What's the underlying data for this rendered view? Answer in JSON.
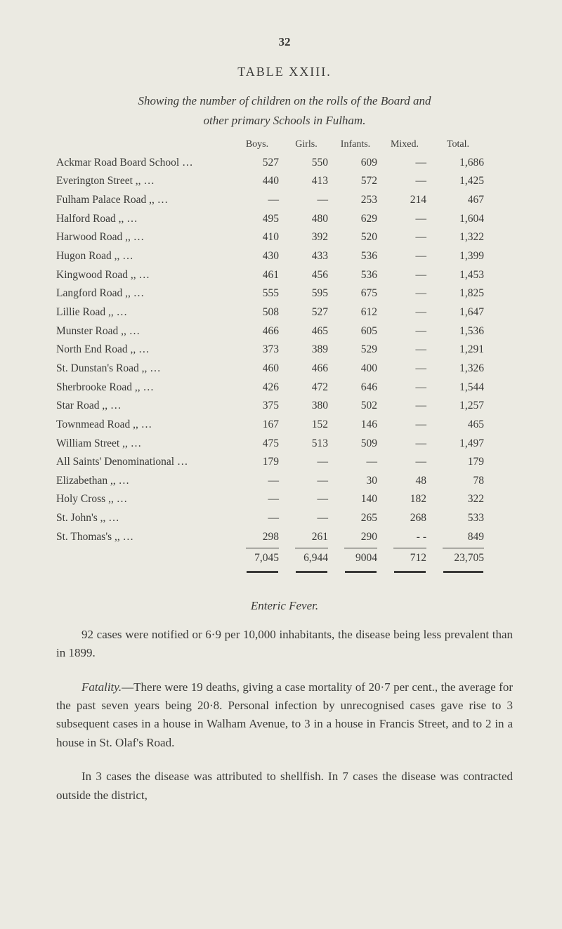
{
  "page_number": "32",
  "table": {
    "title": "TABLE XXIII.",
    "subtitle_line1": "Showing the number of children on the rolls of the Board and",
    "subtitle_line2": "other primary Schools in Fulham.",
    "columns": {
      "c1": "Boys.",
      "c2": "Girls.",
      "c3": "Infants.",
      "c4": "Mixed.",
      "c5": "Total."
    },
    "rows": [
      {
        "label": "Ackmar Road Board School …",
        "boys": "527",
        "girls": "550",
        "infants": "609",
        "mixed": "—",
        "total": "1,686"
      },
      {
        "label": "Everington Street        ,,          …",
        "boys": "440",
        "girls": "413",
        "infants": "572",
        "mixed": "—",
        "total": "1,425"
      },
      {
        "label": "Fulham Palace Road ,,          …",
        "boys": "—",
        "girls": "—",
        "infants": "253",
        "mixed": "214",
        "total": "467"
      },
      {
        "label": "Halford Road               ,,          …",
        "boys": "495",
        "girls": "480",
        "infants": "629",
        "mixed": "—",
        "total": "1,604"
      },
      {
        "label": "Harwood Road             ,,          …",
        "boys": "410",
        "girls": "392",
        "infants": "520",
        "mixed": "—",
        "total": "1,322"
      },
      {
        "label": "Hugon Road                 ,,          …",
        "boys": "430",
        "girls": "433",
        "infants": "536",
        "mixed": "—",
        "total": "1,399"
      },
      {
        "label": "Kingwood Road           ,,          …",
        "boys": "461",
        "girls": "456",
        "infants": "536",
        "mixed": "—",
        "total": "1,453"
      },
      {
        "label": "Langford Road             ,,          …",
        "boys": "555",
        "girls": "595",
        "infants": "675",
        "mixed": "—",
        "total": "1,825"
      },
      {
        "label": "Lillie Road                    ,,          …",
        "boys": "508",
        "girls": "527",
        "infants": "612",
        "mixed": "—",
        "total": "1,647"
      },
      {
        "label": "Munster Road              ,,          …",
        "boys": "466",
        "girls": "465",
        "infants": "605",
        "mixed": "—",
        "total": "1,536"
      },
      {
        "label": "North End Road           ,,          …",
        "boys": "373",
        "girls": "389",
        "infants": "529",
        "mixed": "—",
        "total": "1,291"
      },
      {
        "label": "St. Dunstan's Road     ,,          …",
        "boys": "460",
        "girls": "466",
        "infants": "400",
        "mixed": "—",
        "total": "1,326"
      },
      {
        "label": "Sherbrooke Road         ,,          …",
        "boys": "426",
        "girls": "472",
        "infants": "646",
        "mixed": "—",
        "total": "1,544"
      },
      {
        "label": "Star Road                     ,,          …",
        "boys": "375",
        "girls": "380",
        "infants": "502",
        "mixed": "—",
        "total": "1,257"
      },
      {
        "label": "Townmead Road         ,,          …",
        "boys": "167",
        "girls": "152",
        "infants": "146",
        "mixed": "—",
        "total": "465"
      },
      {
        "label": "William Street              ,,          …",
        "boys": "475",
        "girls": "513",
        "infants": "509",
        "mixed": "—",
        "total": "1,497"
      },
      {
        "label": "All Saints' Denominational   …",
        "boys": "179",
        "girls": "—",
        "infants": "—",
        "mixed": "—",
        "total": "179"
      },
      {
        "label": "Elizabethan                  ,,          …",
        "boys": "—",
        "girls": "—",
        "infants": "30",
        "mixed": "48",
        "total": "78"
      },
      {
        "label": "Holy Cross                   ,,          …",
        "boys": "—",
        "girls": "—",
        "infants": "140",
        "mixed": "182",
        "total": "322"
      },
      {
        "label": "St. John's                    ,,          …",
        "boys": "—",
        "girls": "—",
        "infants": "265",
        "mixed": "268",
        "total": "533"
      },
      {
        "label": "St. Thomas's                ,,          …",
        "boys": "298",
        "girls": "261",
        "infants": "290",
        "mixed": "- -",
        "total": "849"
      }
    ],
    "totals": {
      "boys": "7,045",
      "girls": "6,944",
      "infants": "9004",
      "mixed": "712",
      "total": "23,705"
    }
  },
  "enteric": {
    "heading": "Enteric Fever.",
    "p1": "92 cases were notified or 6·9 per 10,000 inhabitants, the disease being less prevalent than in 1899.",
    "p2_label": "Fatality.",
    "p2": "—There were 19 deaths, giving a case mortality of 20·7 per cent., the average for the past seven years being 20·8. Personal infection by unrecognised cases gave rise to 3 subsequent cases in a house in Walham Avenue, to 3 in a house in Francis Street, and to 2 in a house in St. Olaf's Road.",
    "p3": "In 3 cases the disease was attributed to shellfish. In 7 cases the disease was contracted outside the district,"
  },
  "styling": {
    "background_color": "#ebeae2",
    "text_color": "#3a3a38",
    "body_fontsize": 17,
    "table_fontsize": 15.5,
    "font_family": "Georgia, serif"
  }
}
